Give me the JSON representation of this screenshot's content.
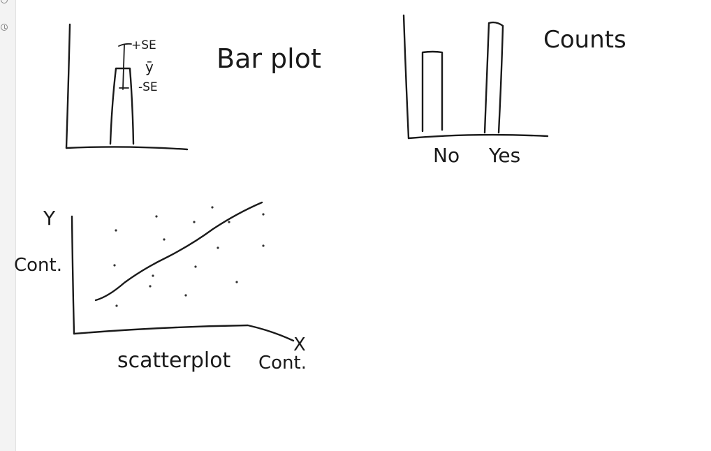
{
  "bar_sketch": {
    "title": "Bar plot",
    "upper_label": "+SE",
    "mean_label": "ȳ",
    "lower_label": "-SE"
  },
  "counts_sketch": {
    "title": "Counts",
    "categories": [
      "No",
      "Yes"
    ]
  },
  "scatter_sketch": {
    "y_var": "Y",
    "y_type": "Cont.",
    "x_var": "X",
    "title": "scatterplot",
    "x_type": "Cont."
  },
  "colors": {
    "ink": "#1a1a1a",
    "rail": "#f3f3f3"
  }
}
